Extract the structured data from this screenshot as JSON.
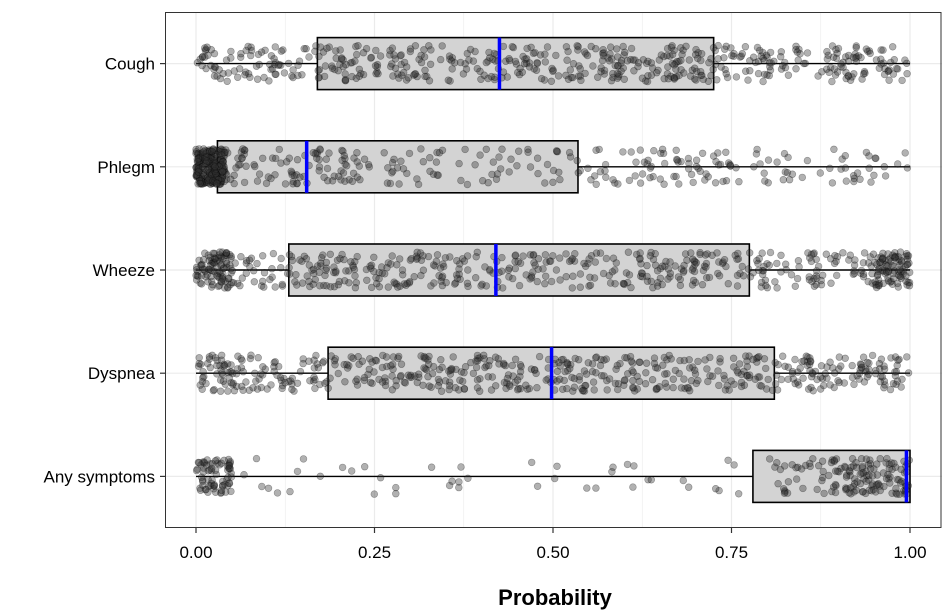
{
  "chart_data": {
    "type": "boxplot",
    "title": "",
    "xlabel": "Probability",
    "ylabel": "",
    "xlim": [
      -0.045,
      1.045
    ],
    "x_ticks": [
      0.0,
      0.25,
      0.5,
      0.75,
      1.0
    ],
    "x_tick_labels": [
      "0.00",
      "0.25",
      "0.50",
      "0.75",
      "1.00"
    ],
    "grid": true,
    "categories": [
      "Cough",
      "Phlegm",
      "Wheeze",
      "Dyspnea",
      "Any symptoms"
    ],
    "boxes": [
      {
        "category": "Cough",
        "whisker_low": 0.0,
        "q1": 0.17,
        "median": 0.425,
        "q3": 0.725,
        "whisker_high": 1.0
      },
      {
        "category": "Phlegm",
        "whisker_low": 0.0,
        "q1": 0.03,
        "median": 0.155,
        "q3": 0.535,
        "whisker_high": 1.0
      },
      {
        "category": "Wheeze",
        "whisker_low": 0.0,
        "q1": 0.13,
        "median": 0.42,
        "q3": 0.775,
        "whisker_high": 1.0
      },
      {
        "category": "Dyspnea",
        "whisker_low": 0.0,
        "q1": 0.185,
        "median": 0.498,
        "q3": 0.81,
        "whisker_high": 1.0
      },
      {
        "category": "Any symptoms",
        "whisker_low": 0.0,
        "q1": 0.78,
        "median": 0.995,
        "q3": 1.0,
        "whisker_high": 1.0
      }
    ],
    "jitter_points": [
      {
        "category": "Cough",
        "count": 520,
        "distribution": "uniform 0-1"
      },
      {
        "category": "Phlegm",
        "count": 520,
        "distribution": "skewed toward 0"
      },
      {
        "category": "Wheeze",
        "count": 620,
        "distribution": "uniform 0-1, clusters at ends"
      },
      {
        "category": "Dyspnea",
        "count": 560,
        "distribution": "uniform 0-1"
      },
      {
        "category": "Any symptoms",
        "count": 260,
        "distribution": "clusters near 0 and near 1"
      }
    ],
    "colors": {
      "box_fill": "#d3d3d3",
      "box_stroke": "#000000",
      "median": "#0000ff",
      "points": "#333333",
      "grid": "#ebebeb",
      "panel_border": "#333333"
    }
  }
}
